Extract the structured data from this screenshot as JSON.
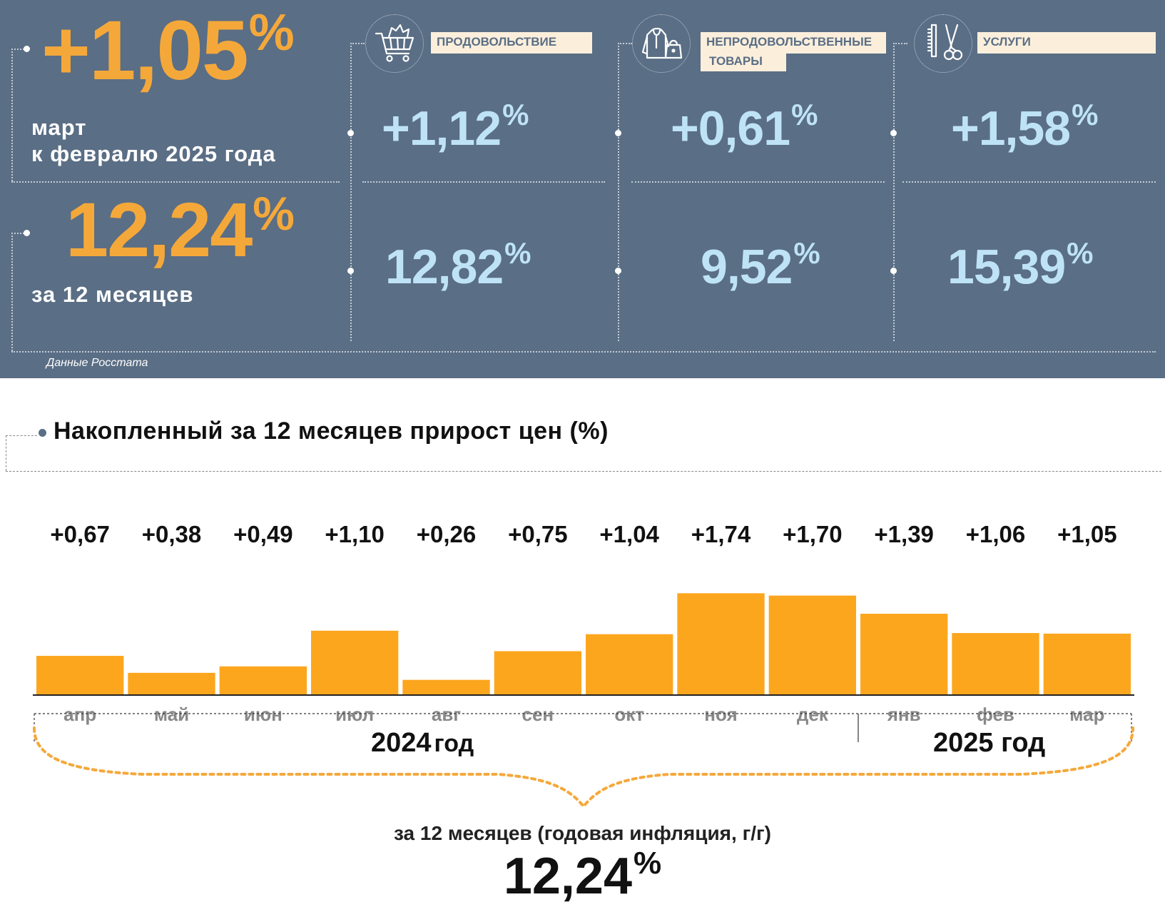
{
  "summary": {
    "monthly": {
      "value": "+1,05",
      "unit": "%",
      "label_line1": "март",
      "label_line2": "к февралю 2025 года"
    },
    "annual": {
      "value": "12,24",
      "unit": "%",
      "label": "за 12 месяцев"
    },
    "source": "Данные Росстата"
  },
  "categories": [
    {
      "label": "ПРОДОВОЛЬСТВИЕ",
      "label_line2": "",
      "icon": "shopping-cart-icon",
      "monthly": "+1,12",
      "annual": "12,82",
      "unit": "%"
    },
    {
      "label": "НЕПРОДОВОЛЬСТВЕННЫЕ",
      "label_line2": "ТОВАРЫ",
      "icon": "clothes-icon",
      "monthly": "+0,61",
      "annual": "9,52",
      "unit": "%"
    },
    {
      "label": "УСЛУГИ",
      "label_line2": "",
      "icon": "scissors-comb-icon",
      "monthly": "+1,58",
      "annual": "15,39",
      "unit": "%"
    }
  ],
  "chart_title": "Накопленный за 12 месяцев прирост цен (%)",
  "chart_data": {
    "type": "bar",
    "title": "Накопленный за 12 месяцев прирост цен (%)",
    "categories": [
      "апр",
      "май",
      "июн",
      "июл",
      "авг",
      "сен",
      "окт",
      "ноя",
      "дек",
      "янв",
      "фев",
      "мар"
    ],
    "values": [
      0.67,
      0.38,
      0.49,
      1.1,
      0.26,
      0.75,
      1.04,
      1.74,
      1.7,
      1.39,
      1.06,
      1.05
    ],
    "value_labels": [
      "+0,67",
      "+0,38",
      "+0,49",
      "+1,10",
      "+0,26",
      "+0,75",
      "+1,04",
      "+1,74",
      "+1,70",
      "+1,39",
      "+1,06",
      "+1,05"
    ],
    "year_groups": [
      {
        "label": "2024 год",
        "year": "2024",
        "suffix": "год",
        "start": 0,
        "end": 8
      },
      {
        "label": "2025 год",
        "year": "2025",
        "suffix": "год",
        "start": 9,
        "end": 11
      }
    ],
    "bar_color": "#fca61e",
    "axis_label_color": "#888888",
    "ylim": [
      0,
      1.8
    ],
    "grid": false
  },
  "total": {
    "caption": "за 12 месяцев (годовая инфляция, г/г)",
    "value": "12,24",
    "unit": "%"
  },
  "colors": {
    "panel": "#5a6e85",
    "orange": "#f5a83a",
    "light_blue": "#bfe3f6",
    "label_bg": "#fbefdc"
  }
}
